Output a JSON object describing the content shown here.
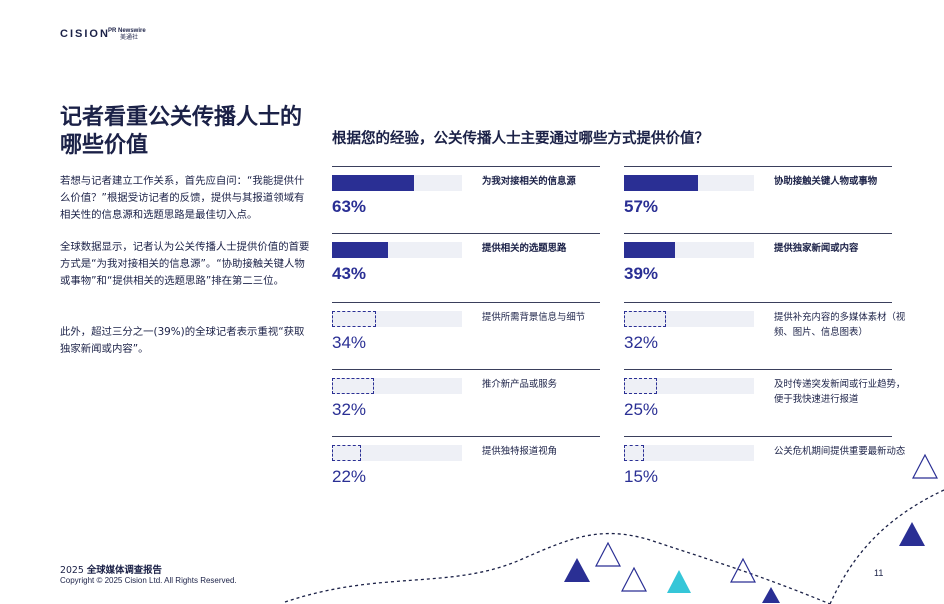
{
  "header": {
    "logo_cision": "CISION",
    "logo_pr_line1": "PR Newswire",
    "logo_pr_line2": "美通社"
  },
  "left": {
    "title": "记者看重公关传播人士的哪些价值",
    "paragraphs": [
      "若想与记者建立工作关系，首先应自问：“我能提供什么价值？”根据受访记者的反馈，提供与其报道领域有相关性的信息源和选题思路是最佳切入点。",
      "全球数据显示，记者认为公关传播人士提供价值的首要方式是“为我对接相关的信息源”。“协助接触关键人物或事物”和“提供相关的选题思路”排在第二三位。",
      "此外，超过三分之一(39%)的全球记者表示重视“获取独家新闻或内容”。"
    ]
  },
  "question": "根据您的经验，公关传播人士主要通过哪些方式提供价值？",
  "chart_data": {
    "type": "bar",
    "title": "根据您的经验，公关传播人士主要通过哪些方式提供价值？",
    "xlabel": "",
    "ylabel": "",
    "ylim": [
      0,
      100
    ],
    "categories": [
      "为我对接相关的信息源",
      "协助接触关键人物或事物",
      "提供相关的选题思路",
      "提供独家新闻或内容",
      "提供所需背景信息与细节",
      "提供补充内容的多媒体素材（视频、图片、信息图表）",
      "推介新产品或服务",
      "及时传递突发新闻或行业趋势，便于我快速进行报道",
      "提供独特报道视角",
      "公关危机期间提供重要最新动态"
    ],
    "values": [
      63,
      57,
      43,
      39,
      34,
      32,
      32,
      25,
      22,
      15
    ],
    "value_labels": [
      "63%",
      "57%",
      "43%",
      "39%",
      "34%",
      "32%",
      "32%",
      "25%",
      "22%",
      "15%"
    ],
    "highlight": [
      true,
      true,
      true,
      true,
      false,
      false,
      false,
      false,
      false,
      false
    ]
  },
  "colors": {
    "primary": "#2a2f94",
    "bar_track": "#eef0f6",
    "text": "#1b2147",
    "accent_teal": "#35c6d8"
  },
  "footer": {
    "report_year": "2025",
    "report_name": "全球媒体调查报告",
    "copyright": "Copyright © 2025 Cision Ltd. All Rights Reserved.",
    "page_number": "11"
  }
}
